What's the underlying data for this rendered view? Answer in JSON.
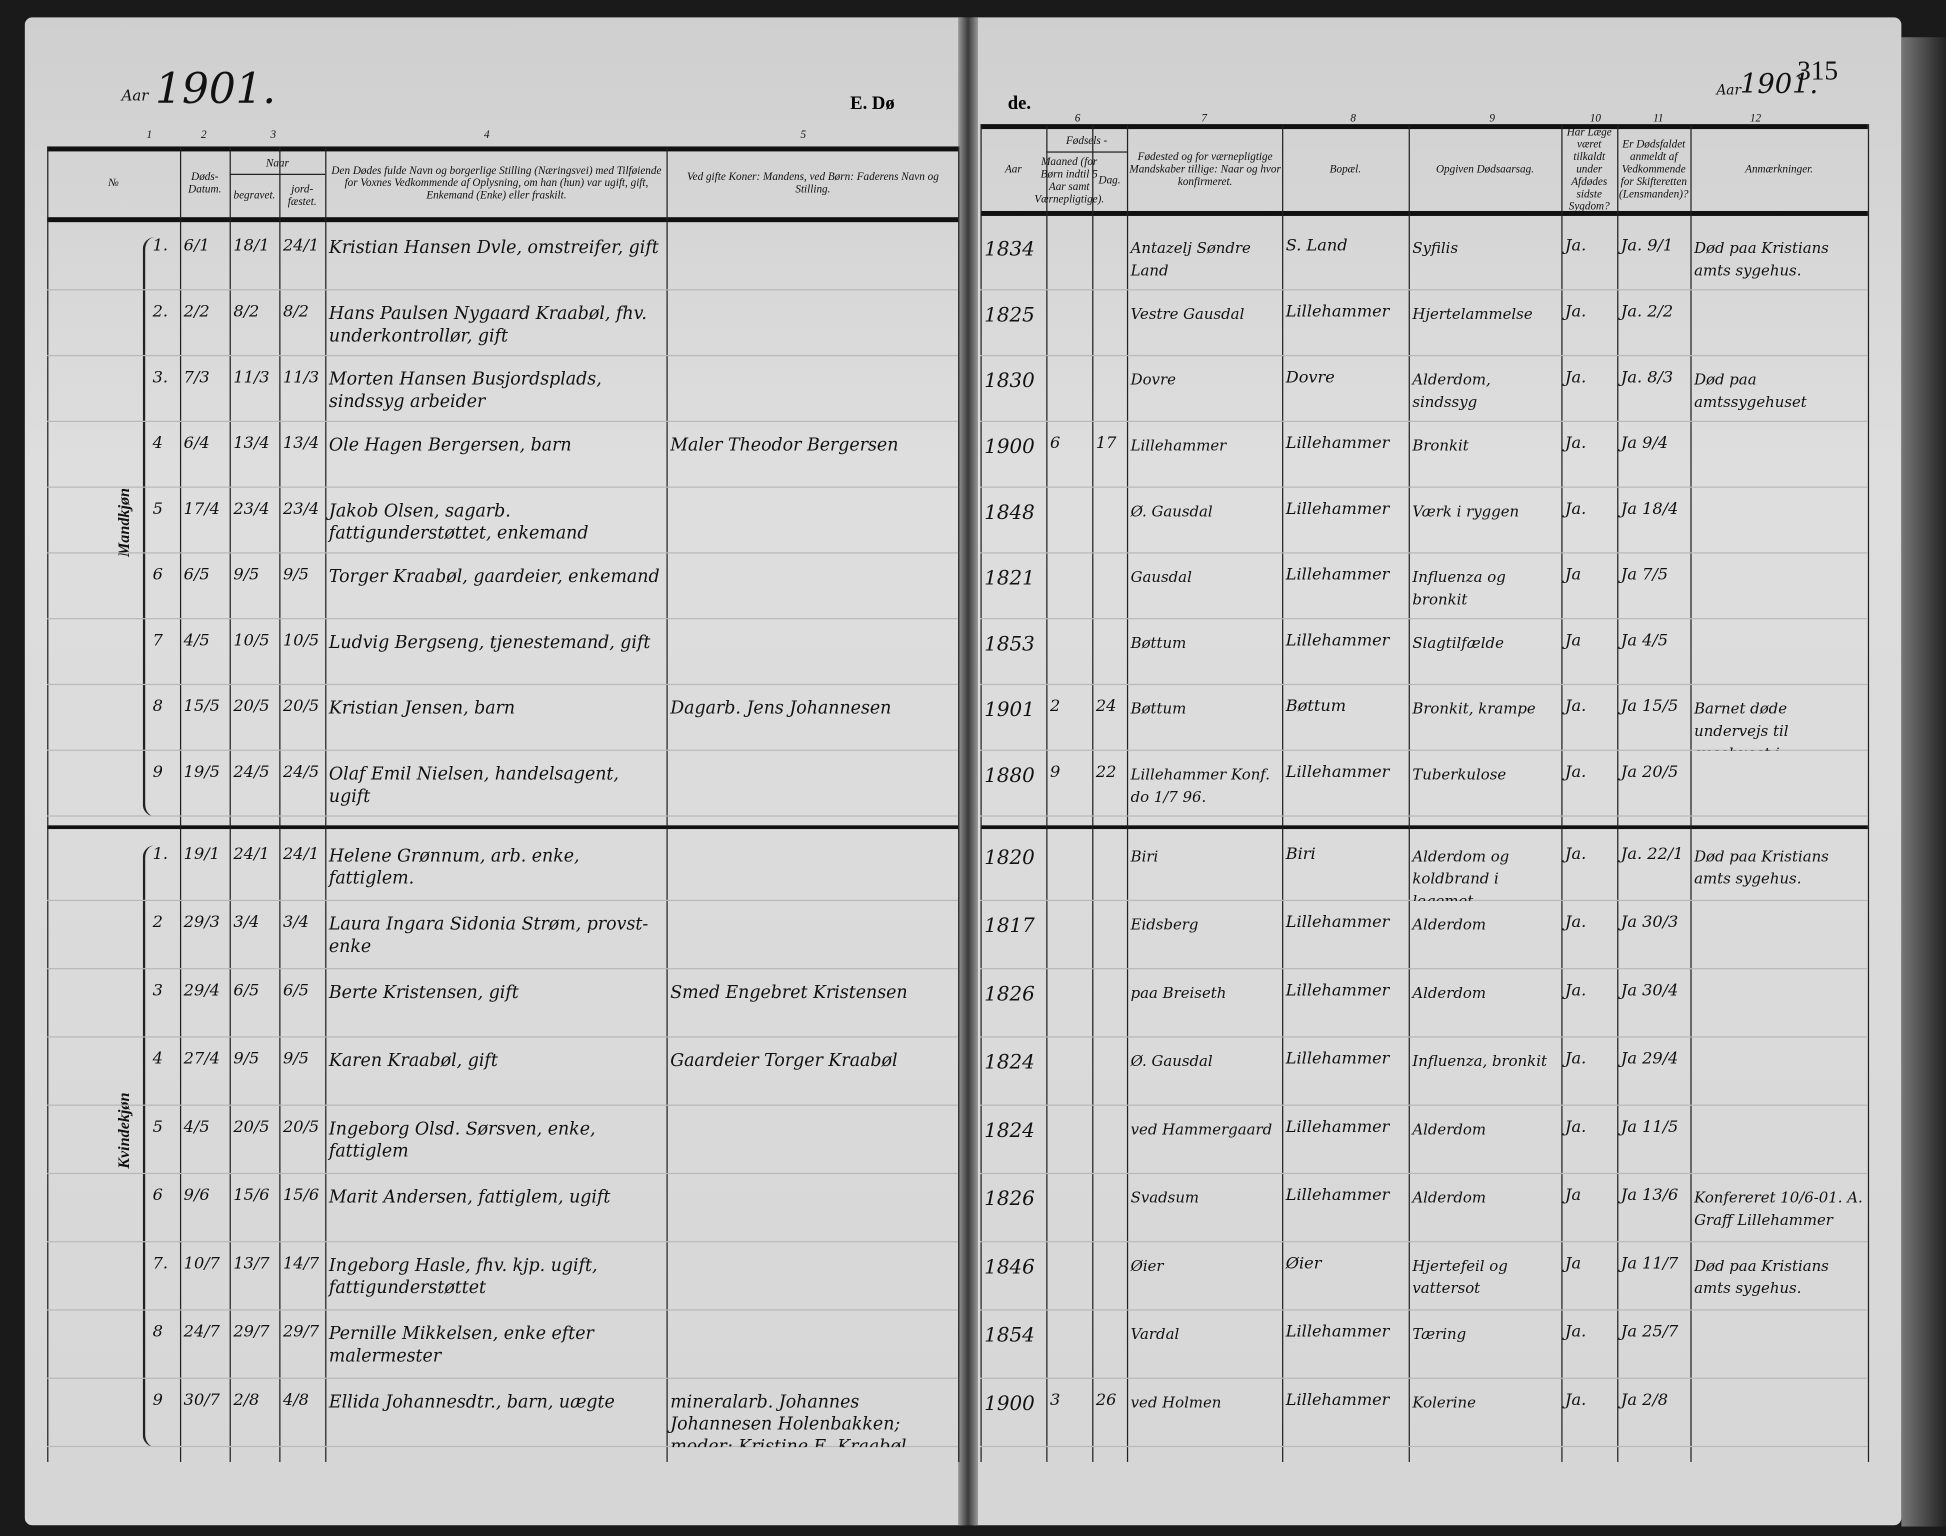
{
  "left_page": {
    "year_label": "Aar",
    "year": "1901.",
    "section_title_left": "E. Dø",
    "column_numbers": [
      "1",
      "2",
      "3",
      "4",
      "5"
    ],
    "headers": {
      "nr": "№",
      "death_date": "Døds-Datum.",
      "when": "Naar",
      "buried": "begravet.",
      "consecrated": "jord-fæstet.",
      "name": "Den Dødes fulde Navn og borgerlige Stilling (Næringsvei) med Tilføiende for Voxnes Vedkommende af Oplysning, om han (hun) var ugift, gift, Enkemand (Enke) eller fraskilt.",
      "parent": "Ved gifte Koner: Mandens, ved Børn: Faderens Navn og Stilling."
    }
  },
  "right_page": {
    "section_title_right": "de.",
    "year_label": "Aar",
    "year": "1901.",
    "page_number": "315",
    "column_numbers": [
      "6",
      "7",
      "8",
      "9",
      "10",
      "11",
      "12"
    ],
    "headers": {
      "year": "Aar",
      "birth": "Fødsels -",
      "month": "Maaned (for Børn indtil 5 Aar samt Værnepligtige).",
      "day": "Dag.",
      "birthplace": "Fødested og for værnepligtige Mandskaber tillige: Naar og hvor konfirmeret.",
      "residence": "Bopæl.",
      "cause": "Opgiven Dødsaarsag.",
      "doctor": "Har Læge været tilkaldt under Afdødes sidste Sygdom?",
      "reported": "Er Dødsfaldet anmeldt af Vedkommende for Skifteretten (Lensmanden)?",
      "remarks": "Anmærkninger."
    }
  },
  "sections": [
    {
      "label": "Mandkjøn",
      "rows": [
        {
          "nr": "1.",
          "date": "6/1",
          "buried": "18/1",
          "consecrated": "24/1",
          "name": "Kristian Hansen Dvle, omstreifer, gift",
          "parent": "",
          "year": "1834",
          "month": "",
          "day": "",
          "birthplace": "Antazelj Søndre Land",
          "residence": "S. Land",
          "cause": "Syfilis",
          "doctor": "Ja.",
          "reported": "Ja. 9/1",
          "remarks": "Død paa Kristians amts sygehus."
        },
        {
          "nr": "2.",
          "date": "2/2",
          "buried": "8/2",
          "consecrated": "8/2",
          "name": "Hans Paulsen Nygaard Kraabøl, fhv. underkontrollør, gift",
          "parent": "",
          "year": "1825",
          "month": "",
          "day": "",
          "birthplace": "Vestre Gausdal",
          "residence": "Lillehammer",
          "cause": "Hjertelammelse",
          "doctor": "Ja.",
          "reported": "Ja. 2/2",
          "remarks": ""
        },
        {
          "nr": "3.",
          "date": "7/3",
          "buried": "11/3",
          "consecrated": "11/3",
          "name": "Morten Hansen Busjordsplads, sindssyg arbeider",
          "parent": "",
          "year": "1830",
          "month": "",
          "day": "",
          "birthplace": "Dovre",
          "residence": "Dovre",
          "cause": "Alderdom, sindssyg",
          "doctor": "Ja.",
          "reported": "Ja. 8/3",
          "remarks": "Død paa amtssygehuset"
        },
        {
          "nr": "4",
          "date": "6/4",
          "buried": "13/4",
          "consecrated": "13/4",
          "name": "Ole Hagen Bergersen, barn",
          "parent": "Maler Theodor Bergersen",
          "year": "1900",
          "month": "6",
          "day": "17",
          "birthplace": "Lillehammer",
          "residence": "Lillehammer",
          "cause": "Bronkit",
          "doctor": "Ja.",
          "reported": "Ja 9/4",
          "remarks": ""
        },
        {
          "nr": "5",
          "date": "17/4",
          "buried": "23/4",
          "consecrated": "23/4",
          "name": "Jakob Olsen, sagarb. fattigunderstøttet, enkemand",
          "parent": "",
          "year": "1848",
          "month": "",
          "day": "",
          "birthplace": "Ø. Gausdal",
          "residence": "Lillehammer",
          "cause": "Værk i ryggen",
          "doctor": "Ja.",
          "reported": "Ja 18/4",
          "remarks": ""
        },
        {
          "nr": "6",
          "date": "6/5",
          "buried": "9/5",
          "consecrated": "9/5",
          "name": "Torger Kraabøl, gaardeier, enkemand",
          "parent": "",
          "year": "1821",
          "month": "",
          "day": "",
          "birthplace": "Gausdal",
          "residence": "Lillehammer",
          "cause": "Influenza og bronkit",
          "doctor": "Ja",
          "reported": "Ja 7/5",
          "remarks": ""
        },
        {
          "nr": "7",
          "date": "4/5",
          "buried": "10/5",
          "consecrated": "10/5",
          "name": "Ludvig Bergseng, tjenestemand, gift",
          "parent": "",
          "year": "1853",
          "month": "",
          "day": "",
          "birthplace": "Bøttum",
          "residence": "Lillehammer",
          "cause": "Slagtilfælde",
          "doctor": "Ja",
          "reported": "Ja 4/5",
          "remarks": ""
        },
        {
          "nr": "8",
          "date": "15/5",
          "buried": "20/5",
          "consecrated": "20/5",
          "name": "Kristian Jensen, barn",
          "parent": "Dagarb. Jens Johannesen",
          "year": "1901",
          "month": "2",
          "day": "24",
          "birthplace": "Bøttum",
          "residence": "Bøttum",
          "cause": "Bronkit, krampe",
          "doctor": "Ja.",
          "reported": "Ja 15/5",
          "remarks": "Barnet døde undervejs til sygehuset i Lillehammer"
        },
        {
          "nr": "9",
          "date": "19/5",
          "buried": "24/5",
          "consecrated": "24/5",
          "name": "Olaf Emil Nielsen, handelsagent, ugift",
          "parent": "",
          "year": "1880",
          "month": "9",
          "day": "22",
          "birthplace": "Lillehammer Konf. do 1/7 96.",
          "residence": "Lillehammer",
          "cause": "Tuberkulose",
          "doctor": "Ja.",
          "reported": "Ja 20/5",
          "remarks": ""
        }
      ]
    },
    {
      "label": "Kvindekjøn",
      "rows": [
        {
          "nr": "1.",
          "date": "19/1",
          "buried": "24/1",
          "consecrated": "24/1",
          "name": "Helene Grønnum, arb. enke, fattiglem.",
          "parent": "",
          "year": "1820",
          "month": "",
          "day": "",
          "birthplace": "Biri",
          "residence": "Biri",
          "cause": "Alderdom og koldbrand i legemet",
          "doctor": "Ja.",
          "reported": "Ja. 22/1",
          "remarks": "Død paa Kristians amts sygehus."
        },
        {
          "nr": "2",
          "date": "29/3",
          "buried": "3/4",
          "consecrated": "3/4",
          "name": "Laura Ingara Sidonia Strøm, provst-enke",
          "parent": "",
          "year": "1817",
          "month": "",
          "day": "",
          "birthplace": "Eidsberg",
          "residence": "Lillehammer",
          "cause": "Alderdom",
          "doctor": "Ja.",
          "reported": "Ja 30/3",
          "remarks": ""
        },
        {
          "nr": "3",
          "date": "29/4",
          "buried": "6/5",
          "consecrated": "6/5",
          "name": "Berte Kristensen, gift",
          "parent": "Smed Engebret Kristensen",
          "year": "1826",
          "month": "",
          "day": "",
          "birthplace": "paa Breiseth",
          "residence": "Lillehammer",
          "cause": "Alderdom",
          "doctor": "Ja.",
          "reported": "Ja 30/4",
          "remarks": ""
        },
        {
          "nr": "4",
          "date": "27/4",
          "buried": "9/5",
          "consecrated": "9/5",
          "name": "Karen Kraabøl, gift",
          "parent": "Gaardeier Torger Kraabøl",
          "year": "1824",
          "month": "",
          "day": "",
          "birthplace": "Ø. Gausdal",
          "residence": "Lillehammer",
          "cause": "Influenza, bronkit",
          "doctor": "Ja.",
          "reported": "Ja 29/4",
          "remarks": ""
        },
        {
          "nr": "5",
          "date": "4/5",
          "buried": "20/5",
          "consecrated": "20/5",
          "name": "Ingeborg Olsd. Sørsven, enke, fattiglem",
          "parent": "",
          "year": "1824",
          "month": "",
          "day": "",
          "birthplace": "ved Hammergaard",
          "residence": "Lillehammer",
          "cause": "Alderdom",
          "doctor": "Ja.",
          "reported": "Ja 11/5",
          "remarks": ""
        },
        {
          "nr": "6",
          "date": "9/6",
          "buried": "15/6",
          "consecrated": "15/6",
          "name": "Marit Andersen, fattiglem, ugift",
          "parent": "",
          "year": "1826",
          "month": "",
          "day": "",
          "birthplace": "Svadsum",
          "residence": "Lillehammer",
          "cause": "Alderdom",
          "doctor": "Ja",
          "reported": "Ja 13/6",
          "remarks": "Konfereret 10/6-01. A. Graff Lillehammer"
        },
        {
          "nr": "7.",
          "date": "10/7",
          "buried": "13/7",
          "consecrated": "14/7",
          "name": "Ingeborg Hasle, fhv. kjp. ugift, fattigunderstøttet",
          "parent": "",
          "year": "1846",
          "month": "",
          "day": "",
          "birthplace": "Øier",
          "residence": "Øier",
          "cause": "Hjertefeil og vattersot",
          "doctor": "Ja",
          "reported": "Ja 11/7",
          "remarks": "Død paa Kristians amts sygehus."
        },
        {
          "nr": "8",
          "date": "24/7",
          "buried": "29/7",
          "consecrated": "29/7",
          "name": "Pernille Mikkelsen, enke efter malermester",
          "parent": "",
          "year": "1854",
          "month": "",
          "day": "",
          "birthplace": "Vardal",
          "residence": "Lillehammer",
          "cause": "Tæring",
          "doctor": "Ja.",
          "reported": "Ja 25/7",
          "remarks": ""
        },
        {
          "nr": "9",
          "date": "30/7",
          "buried": "2/8",
          "consecrated": "4/8",
          "name": "Ellida Johannesdtr., barn, uægte",
          "parent": "mineralarb. Johannes Johannesen Holenbakken; moder: Kristine E. Kraabøl",
          "year": "1900",
          "month": "3",
          "day": "26",
          "birthplace": "ved Holmen",
          "residence": "Lillehammer",
          "cause": "Kolerine",
          "doctor": "Ja.",
          "reported": "Ja 2/8",
          "remarks": ""
        }
      ]
    }
  ]
}
